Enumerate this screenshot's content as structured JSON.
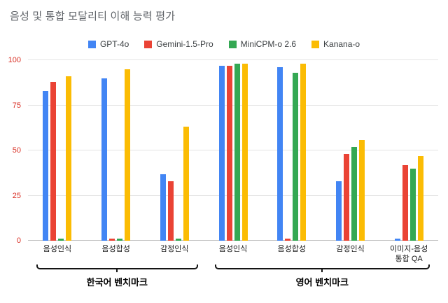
{
  "title": "음성 및 통합 모달리티 이해 능력 평가",
  "chart_data": {
    "type": "bar",
    "title": "음성 및 통합 모달리티 이해 능력 평가",
    "categories": [
      "음성인식",
      "음성합성",
      "감정인식",
      "음성인식",
      "음성합성",
      "감정인식",
      "이미지-음성\n통합 QA"
    ],
    "series": [
      {
        "name": "GPT-4o",
        "color": "#4285F4",
        "values": [
          83,
          90,
          37,
          97,
          96,
          33,
          1
        ]
      },
      {
        "name": "Gemini-1.5-Pro",
        "color": "#EA4335",
        "values": [
          88,
          1,
          33,
          97,
          1,
          48,
          42
        ]
      },
      {
        "name": "MiniCPM-o 2.6",
        "color": "#34A853",
        "values": [
          1,
          1,
          1,
          98,
          93,
          52,
          40
        ]
      },
      {
        "name": "Kanana-o",
        "color": "#FBBC04",
        "values": [
          91,
          95,
          63,
          98,
          98,
          56,
          47
        ]
      }
    ],
    "ylim": [
      0,
      100
    ],
    "yticks": [
      0,
      25,
      50,
      75,
      100
    ],
    "xlabel": "",
    "ylabel": "",
    "grid": true,
    "legend_position": "top",
    "axis_groups": [
      {
        "label": "한국어 벤치마크",
        "span": 3
      },
      {
        "label": "영어 벤치마크",
        "span": 4
      }
    ]
  }
}
